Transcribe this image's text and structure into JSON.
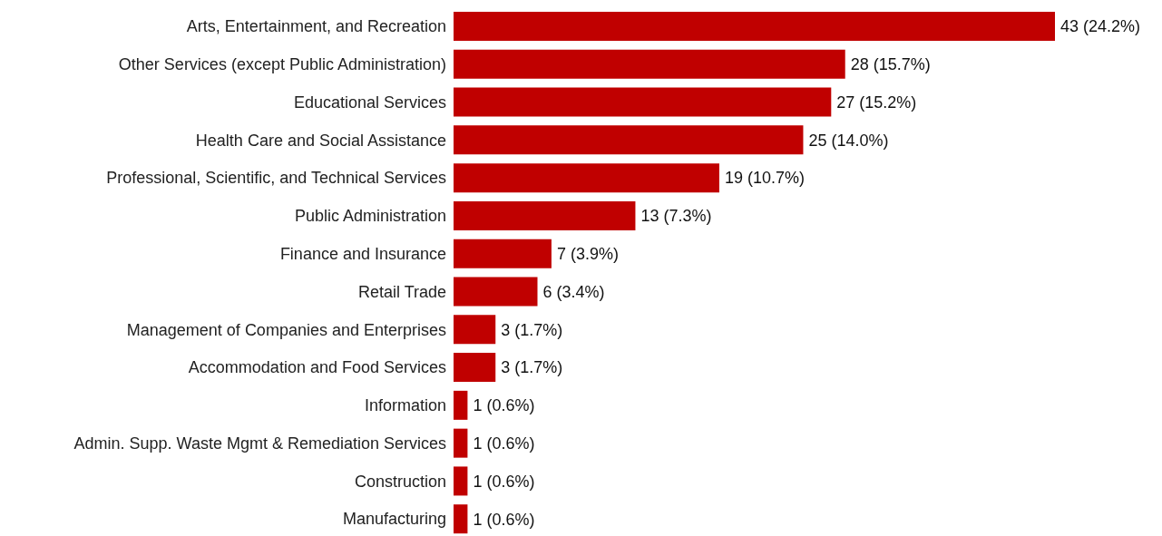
{
  "chart_data": {
    "type": "bar",
    "orientation": "horizontal",
    "categories": [
      "Arts, Entertainment, and Recreation",
      "Other Services (except Public Administration)",
      "Educational Services",
      "Health Care and Social Assistance",
      "Professional, Scientific, and Technical Services",
      "Public Administration",
      "Finance and Insurance",
      "Retail Trade",
      "Management of Companies and Enterprises",
      "Accommodation and Food Services",
      "Information",
      "Admin. Supp. Waste Mgmt & Remediation Services",
      "Construction",
      "Manufacturing"
    ],
    "values": [
      43,
      28,
      27,
      25,
      19,
      13,
      7,
      6,
      3,
      3,
      1,
      1,
      1,
      1
    ],
    "value_labels": [
      "43 (24.2%)",
      "28 (15.7%)",
      "27 (15.2%)",
      "25 (14.0%)",
      "19 (10.7%)",
      "13 (7.3%)",
      "7 (3.9%)",
      "6 (3.4%)",
      "3 (1.7%)",
      "3 (1.7%)",
      "1 (0.6%)",
      "1 (0.6%)",
      "1 (0.6%)",
      "1 (0.6%)"
    ],
    "color": "#c00000"
  }
}
